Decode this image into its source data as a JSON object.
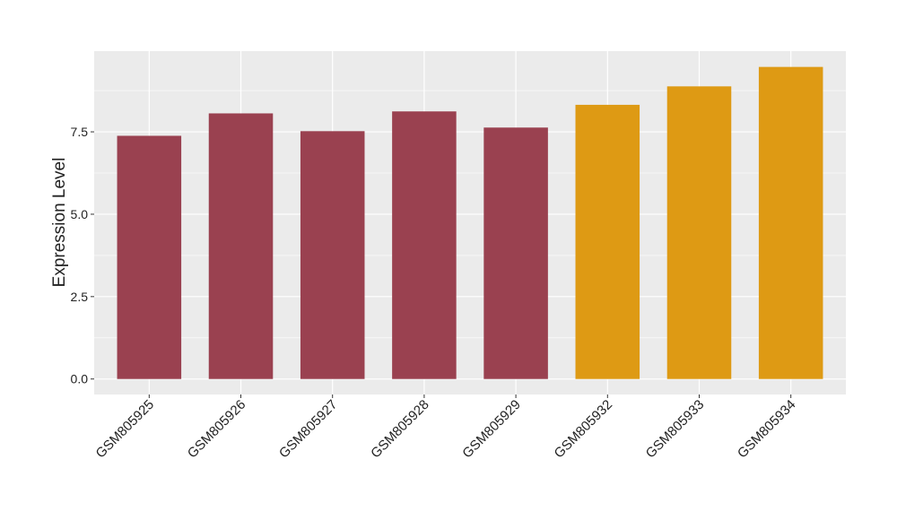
{
  "chart_data": {
    "type": "bar",
    "y_label": "Expression Level",
    "categories": [
      "GSM805925",
      "GSM805926",
      "GSM805927",
      "GSM805928",
      "GSM805929",
      "GSM805932",
      "GSM805933",
      "GSM805934"
    ],
    "values": [
      7.38,
      8.06,
      7.52,
      8.12,
      7.63,
      8.32,
      8.88,
      9.47
    ],
    "colors": [
      "#9a4150",
      "#9a4150",
      "#9a4150",
      "#9a4150",
      "#9a4150",
      "#de9a14",
      "#de9a14",
      "#de9a14"
    ],
    "ylim": [
      -0.47,
      9.95
    ],
    "yticks": [
      {
        "value": 0,
        "label": "0.0"
      },
      {
        "value": 2.5,
        "label": "2.5"
      },
      {
        "value": 5,
        "label": "5.0"
      },
      {
        "value": 7.5,
        "label": "7.5"
      }
    ],
    "grid": true
  }
}
